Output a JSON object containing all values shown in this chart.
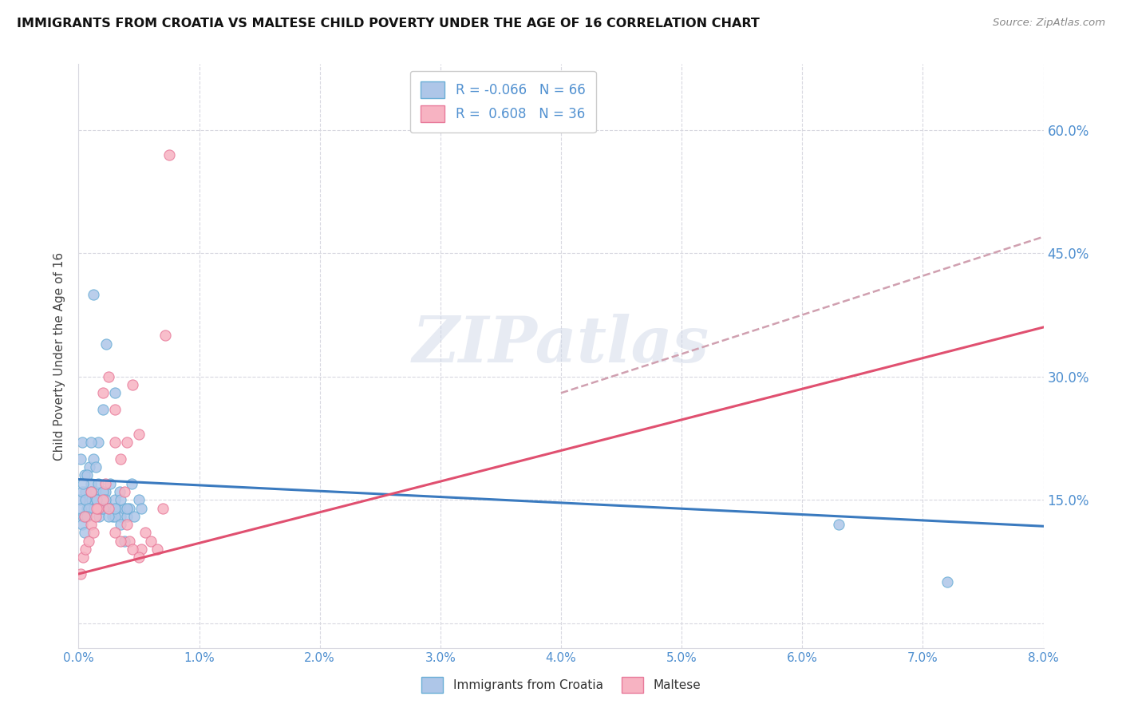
{
  "title": "IMMIGRANTS FROM CROATIA VS MALTESE CHILD POVERTY UNDER THE AGE OF 16 CORRELATION CHART",
  "source": "Source: ZipAtlas.com",
  "ylabel": "Child Poverty Under the Age of 16",
  "watermark": "ZIPatlas",
  "blue_scatter_color": "#aec6e8",
  "blue_edge_color": "#6aaed6",
  "pink_scatter_color": "#f7b3c2",
  "pink_edge_color": "#e87a9a",
  "blue_line_color": "#3a7abf",
  "pink_line_color": "#e05070",
  "dashed_line_color": "#d0a0b0",
  "xlim": [
    0.0,
    0.08
  ],
  "ylim": [
    -0.03,
    0.68
  ],
  "xtick_positions": [
    0.0,
    0.01,
    0.02,
    0.03,
    0.04,
    0.05,
    0.06,
    0.07,
    0.08
  ],
  "xtick_labels": [
    "0.0%",
    "1.0%",
    "2.0%",
    "3.0%",
    "4.0%",
    "5.0%",
    "6.0%",
    "7.0%",
    "8.0%"
  ],
  "ytick_positions": [
    0.0,
    0.15,
    0.3,
    0.45,
    0.6
  ],
  "ytick_labels": [
    "",
    "15.0%",
    "30.0%",
    "45.0%",
    "60.0%"
  ],
  "legend1_r": "-0.066",
  "legend1_n": "66",
  "legend2_r": "0.608",
  "legend2_n": "36",
  "blue_trend": [
    0.0,
    0.08,
    0.175,
    0.118
  ],
  "pink_trend": [
    0.0,
    0.08,
    0.06,
    0.36
  ],
  "dashed_trend": [
    0.04,
    0.08,
    0.28,
    0.47
  ],
  "croatia_scatter_x": [
    0.0002,
    0.0003,
    0.0004,
    0.0005,
    0.0006,
    0.0007,
    0.0008,
    0.0009,
    0.001,
    0.0011,
    0.0012,
    0.0013,
    0.0014,
    0.0015,
    0.0016,
    0.0017,
    0.0018,
    0.002,
    0.002,
    0.0022,
    0.0023,
    0.0025,
    0.0026,
    0.0028,
    0.003,
    0.003,
    0.0032,
    0.0034,
    0.0035,
    0.0038,
    0.004,
    0.0042,
    0.0044,
    0.0046,
    0.005,
    0.0052,
    0.0001,
    0.0002,
    0.0003,
    0.0004,
    0.0005,
    0.0006,
    0.0007,
    0.0008,
    0.001,
    0.0012,
    0.0014,
    0.0016,
    0.002,
    0.0022,
    0.0025,
    0.003,
    0.0035,
    0.004,
    0.0003,
    0.0005,
    0.0007,
    0.001,
    0.0015,
    0.002,
    0.0025,
    0.003,
    0.0035,
    0.0038,
    0.063,
    0.072
  ],
  "croatia_scatter_y": [
    0.2,
    0.22,
    0.13,
    0.18,
    0.16,
    0.14,
    0.15,
    0.19,
    0.17,
    0.15,
    0.4,
    0.14,
    0.16,
    0.15,
    0.22,
    0.13,
    0.14,
    0.26,
    0.15,
    0.16,
    0.34,
    0.14,
    0.17,
    0.13,
    0.28,
    0.15,
    0.14,
    0.16,
    0.13,
    0.14,
    0.13,
    0.14,
    0.17,
    0.13,
    0.15,
    0.14,
    0.15,
    0.14,
    0.16,
    0.17,
    0.13,
    0.15,
    0.18,
    0.14,
    0.22,
    0.2,
    0.19,
    0.17,
    0.16,
    0.15,
    0.14,
    0.13,
    0.15,
    0.14,
    0.12,
    0.11,
    0.13,
    0.16,
    0.15,
    0.14,
    0.13,
    0.14,
    0.12,
    0.1,
    0.12,
    0.05
  ],
  "maltese_scatter_x": [
    0.0002,
    0.0004,
    0.0006,
    0.0008,
    0.001,
    0.0012,
    0.0014,
    0.0016,
    0.002,
    0.0022,
    0.0025,
    0.003,
    0.003,
    0.0035,
    0.0038,
    0.004,
    0.0042,
    0.0045,
    0.005,
    0.0052,
    0.0005,
    0.001,
    0.0015,
    0.002,
    0.0025,
    0.003,
    0.0035,
    0.004,
    0.0045,
    0.005,
    0.0055,
    0.006,
    0.0065,
    0.007,
    0.0072,
    0.0075
  ],
  "maltese_scatter_y": [
    0.06,
    0.08,
    0.09,
    0.1,
    0.12,
    0.11,
    0.13,
    0.14,
    0.15,
    0.17,
    0.14,
    0.22,
    0.26,
    0.2,
    0.16,
    0.22,
    0.1,
    0.29,
    0.23,
    0.09,
    0.13,
    0.16,
    0.14,
    0.28,
    0.3,
    0.11,
    0.1,
    0.12,
    0.09,
    0.08,
    0.11,
    0.1,
    0.09,
    0.14,
    0.35,
    0.57
  ]
}
